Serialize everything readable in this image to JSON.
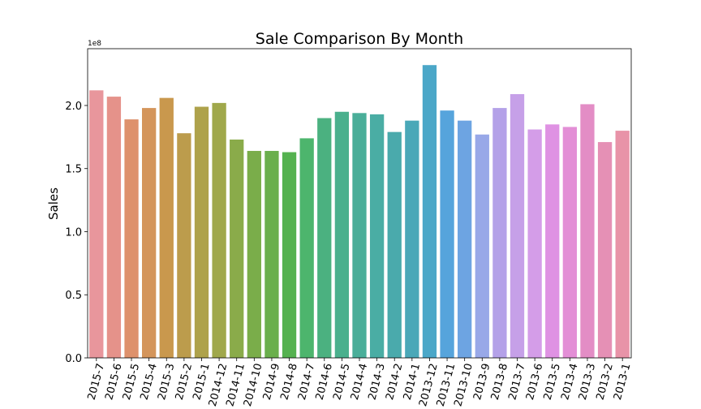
{
  "chart_data": {
    "type": "bar",
    "title": "Sale Comparison By Month",
    "xlabel": "",
    "ylabel": "Sales",
    "y_scale_label": "1e8",
    "ylim": [
      0,
      2.45
    ],
    "yticks": [
      "0.0",
      "0.5",
      "1.0",
      "1.5",
      "2.0"
    ],
    "grid": false,
    "legend": "none",
    "categories": [
      "2015-7",
      "2015-6",
      "2015-5",
      "2015-4",
      "2015-3",
      "2015-2",
      "2015-1",
      "2014-12",
      "2014-11",
      "2014-10",
      "2014-9",
      "2014-8",
      "2014-7",
      "2014-6",
      "2014-5",
      "2014-4",
      "2014-3",
      "2014-2",
      "2014-1",
      "2013-12",
      "2013-11",
      "2013-10",
      "2013-9",
      "2013-8",
      "2013-7",
      "2013-6",
      "2013-5",
      "2013-4",
      "2013-3",
      "2013-2",
      "2013-1"
    ],
    "values": [
      2.12,
      2.07,
      1.89,
      1.98,
      2.06,
      1.78,
      1.99,
      2.02,
      1.73,
      1.64,
      1.64,
      1.63,
      1.74,
      1.9,
      1.95,
      1.94,
      1.93,
      1.79,
      1.88,
      2.32,
      1.96,
      1.88,
      1.77,
      1.98,
      2.09,
      1.81,
      1.85,
      1.83,
      2.01,
      1.71,
      1.8
    ],
    "colors": [
      "#e8969c",
      "#e5928a",
      "#de916c",
      "#d4955b",
      "#c9984d",
      "#bc9c4c",
      "#aea24b",
      "#a0a84b",
      "#8aab4a",
      "#7aad4a",
      "#6aaf4c",
      "#55b250",
      "#4db56d",
      "#4bb180",
      "#4ab08d",
      "#4aae99",
      "#4aada4",
      "#4aaaac",
      "#4aa8b8",
      "#4ba7c8",
      "#56a4dc",
      "#6da4e2",
      "#98a8e8",
      "#b4a1e8",
      "#c6a0e8",
      "#d49de8",
      "#df92e3",
      "#e38fd6",
      "#e38dc5",
      "#e590b5",
      "#e893a8"
    ]
  }
}
